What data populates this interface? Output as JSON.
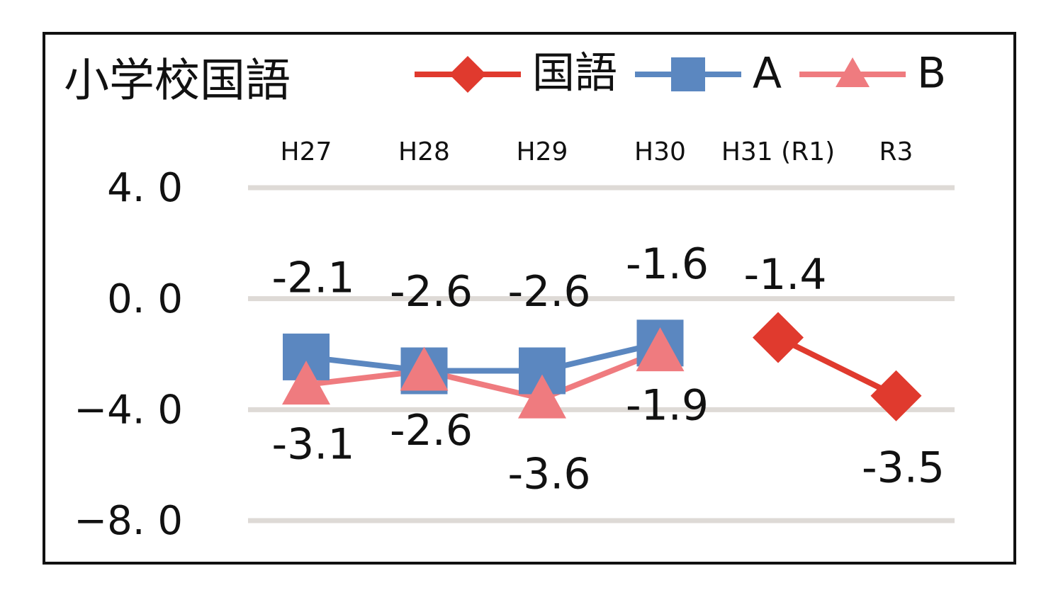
{
  "chart_data": {
    "type": "line",
    "title": "小学校国語",
    "categories": [
      "H27",
      "H28",
      "H29",
      "H30",
      "H31 (R1)",
      "R3"
    ],
    "series": [
      {
        "name": "国語",
        "color": "#e03a2e",
        "marker": "diamond",
        "values": [
          null,
          null,
          null,
          null,
          -1.4,
          -3.5
        ]
      },
      {
        "name": "A",
        "color": "#5b87c0",
        "marker": "square",
        "values": [
          -2.1,
          -2.6,
          -2.6,
          -1.6,
          null,
          null
        ]
      },
      {
        "name": "B",
        "color": "#ef7b7f",
        "marker": "triangle",
        "values": [
          -3.1,
          -2.6,
          -3.6,
          -1.9,
          null,
          null
        ]
      }
    ],
    "ylim": [
      -8,
      4
    ],
    "yticks": [
      {
        "value": 4,
        "label": "4. 0"
      },
      {
        "value": 0,
        "label": "0. 0"
      },
      {
        "value": -4,
        "label": "−4. 0"
      },
      {
        "value": -8,
        "label": "−8. 0"
      }
    ],
    "grid": true
  }
}
